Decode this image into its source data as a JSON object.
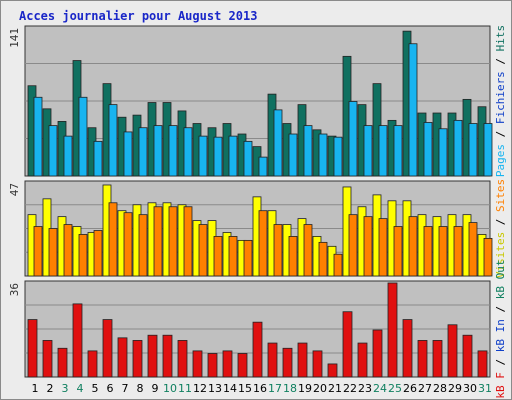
{
  "title": "Acces journalier pour August 2013",
  "colors": {
    "hits": "#107060",
    "files": "#18b4f0",
    "pages": "#18b4f0",
    "visits": "#ffff00",
    "sites": "#ff8000",
    "kbin": "#1040c8",
    "kbout": "#108060",
    "kbf": "#e01010",
    "weekend": "#108060",
    "weekday": "#000000",
    "panel": "#c0c0c0"
  },
  "chart_data": [
    {
      "type": "bar",
      "panel": "top",
      "max_label": "141",
      "ylim": [
        0,
        141
      ],
      "axis_text": [
        {
          "text": "Pages",
          "color": "#18b4f0"
        },
        {
          "text": " / ",
          "color": "#000000"
        },
        {
          "text": "Fichiers",
          "color": "#1040c8"
        },
        {
          "text": " / ",
          "color": "#000000"
        },
        {
          "text": "Hits",
          "color": "#107060"
        }
      ],
      "categories": [
        "1",
        "2",
        "3",
        "4",
        "5",
        "6",
        "7",
        "8",
        "9",
        "10",
        "11",
        "12",
        "13",
        "14",
        "15",
        "16",
        "17",
        "18",
        "19",
        "20",
        "21",
        "22",
        "23",
        "24",
        "25",
        "26",
        "27",
        "28",
        "29",
        "30",
        "31"
      ],
      "series": [
        {
          "name": "Hits",
          "values": [
            86,
            64,
            52,
            110,
            46,
            88,
            56,
            58,
            70,
            70,
            62,
            50,
            46,
            50,
            40,
            28,
            78,
            50,
            68,
            44,
            38,
            114,
            68,
            88,
            53,
            138,
            60,
            60,
            60,
            73,
            66
          ]
        },
        {
          "name": "Fichiers",
          "values": [
            75,
            48,
            38,
            75,
            33,
            68,
            42,
            46,
            48,
            48,
            46,
            38,
            37,
            38,
            33,
            18,
            63,
            40,
            48,
            40,
            37,
            71,
            48,
            48,
            48,
            126,
            51,
            45,
            53,
            50,
            50
          ]
        }
      ]
    },
    {
      "type": "bar",
      "panel": "middle",
      "max_label": "47",
      "ylim": [
        0,
        47
      ],
      "axis_text": [
        {
          "text": "Visites",
          "color": "#c8c800"
        },
        {
          "text": " / ",
          "color": "#000000"
        },
        {
          "text": "Sites",
          "color": "#ff8000"
        }
      ],
      "categories": [
        "1",
        "2",
        "3",
        "4",
        "5",
        "6",
        "7",
        "8",
        "9",
        "10",
        "11",
        "12",
        "13",
        "14",
        "15",
        "16",
        "17",
        "18",
        "19",
        "20",
        "21",
        "22",
        "23",
        "24",
        "25",
        "26",
        "27",
        "28",
        "29",
        "30",
        "31"
      ],
      "series": [
        {
          "name": "Visites",
          "values": [
            31,
            39,
            30,
            25,
            22,
            46,
            33,
            36,
            37,
            37,
            36,
            28,
            28,
            22,
            18,
            40,
            33,
            26,
            29,
            20,
            15,
            45,
            35,
            41,
            38,
            38,
            31,
            30,
            31,
            31,
            21
          ]
        },
        {
          "name": "Sites",
          "values": [
            25,
            24,
            26,
            21,
            23,
            37,
            32,
            31,
            35,
            35,
            35,
            26,
            20,
            20,
            18,
            33,
            26,
            20,
            26,
            17,
            11,
            31,
            30,
            29,
            25,
            30,
            25,
            25,
            25,
            27,
            19
          ]
        }
      ]
    },
    {
      "type": "bar",
      "panel": "bottom",
      "max_label": "36",
      "ylim": [
        0,
        36
      ],
      "axis_text": [
        {
          "text": "kB F",
          "color": "#e01010"
        },
        {
          "text": " / ",
          "color": "#000000"
        },
        {
          "text": "kB In",
          "color": "#1040c8"
        },
        {
          "text": " / ",
          "color": "#000000"
        },
        {
          "text": "kB Out",
          "color": "#108060"
        }
      ],
      "categories": [
        "1",
        "2",
        "3",
        "4",
        "5",
        "6",
        "7",
        "8",
        "9",
        "10",
        "11",
        "12",
        "13",
        "14",
        "15",
        "16",
        "17",
        "18",
        "19",
        "20",
        "21",
        "22",
        "23",
        "24",
        "25",
        "26",
        "27",
        "28",
        "29",
        "30",
        "31"
      ],
      "series": [
        {
          "name": "kB F",
          "values": [
            22,
            14,
            11,
            28,
            10,
            22,
            15,
            14,
            16,
            16,
            14,
            10,
            9,
            10,
            9,
            21,
            13,
            11,
            13,
            10,
            5,
            25,
            13,
            18,
            36,
            22,
            14,
            14,
            20,
            16,
            10
          ]
        }
      ]
    }
  ],
  "weekend_days": [
    "3",
    "4",
    "10",
    "11",
    "17",
    "18",
    "24",
    "25",
    "31"
  ]
}
